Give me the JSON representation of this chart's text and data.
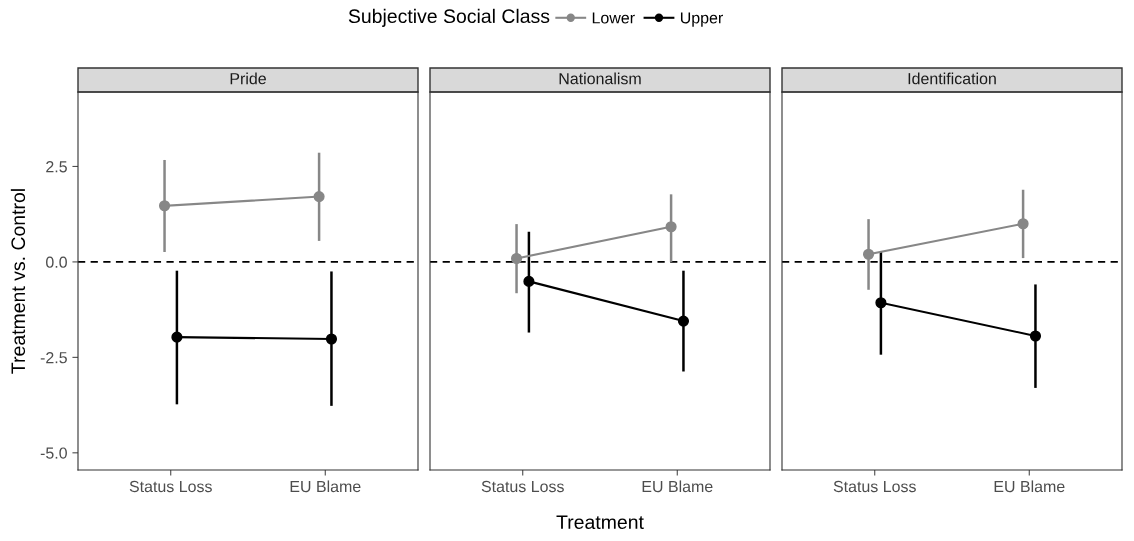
{
  "chart_data": [
    {
      "type": "line",
      "title": "Pride",
      "ylabel": "Treatment vs. Control",
      "legend_title": "Subjective Social Class",
      "legend": "top",
      "categories": [
        "Status Loss",
        "EU Blame"
      ],
      "ylim": [
        -5.45,
        4.45
      ],
      "yticks": [
        {
          "value": -5,
          "label": "-5.0"
        },
        {
          "value": -2.5,
          "label": "-2.5"
        },
        {
          "value": 0,
          "label": "0.0"
        },
        {
          "value": 2.5,
          "label": "2.5"
        }
      ],
      "grid": false,
      "marker": "circle",
      "line_style": "solid",
      "ref_lines": [
        {
          "axis": "y",
          "value": 0,
          "line_style": "dashed",
          "color": "#000000"
        }
      ],
      "series": [
        {
          "name": "Lower",
          "color": "#878787",
          "values": [
            1.47,
            1.71
          ],
          "errors": [
            [
              0.26,
              2.67
            ],
            [
              0.55,
              2.86
            ]
          ]
        },
        {
          "name": "Upper",
          "color": "#000000",
          "values": [
            -1.97,
            -2.02
          ],
          "errors": [
            [
              -3.73,
              -0.23
            ],
            [
              -3.77,
              -0.25
            ]
          ]
        }
      ]
    },
    {
      "type": "line",
      "title": "Nationalism",
      "xlabel": "Treatment",
      "categories": [
        "Status Loss",
        "EU Blame"
      ],
      "ylim": [
        -5.45,
        4.45
      ],
      "tick_labels": "x",
      "grid": false,
      "marker": "circle",
      "line_style": "solid",
      "ref_lines": [
        {
          "axis": "y",
          "value": 0,
          "line_style": "dashed",
          "color": "#000000"
        }
      ],
      "series": [
        {
          "name": "Lower",
          "color": "#878787",
          "values": [
            0.09,
            0.92
          ],
          "errors": [
            [
              -0.82,
              0.99
            ],
            [
              0.0,
              1.77
            ]
          ]
        },
        {
          "name": "Upper",
          "color": "#000000",
          "values": [
            -0.51,
            -1.55
          ],
          "errors": [
            [
              -1.85,
              0.79
            ],
            [
              -2.87,
              -0.23
            ]
          ]
        }
      ]
    },
    {
      "type": "line",
      "title": "Identification",
      "categories": [
        "Status Loss",
        "EU Blame"
      ],
      "ylim": [
        -5.45,
        4.45
      ],
      "tick_labels": "x",
      "grid": false,
      "marker": "circle",
      "line_style": "solid",
      "ref_lines": [
        {
          "axis": "y",
          "value": 0,
          "line_style": "dashed",
          "color": "#000000"
        }
      ],
      "series": [
        {
          "name": "Lower",
          "color": "#878787",
          "values": [
            0.2,
            1.0
          ],
          "errors": [
            [
              -0.73,
              1.12
            ],
            [
              0.1,
              1.89
            ]
          ]
        },
        {
          "name": "Upper",
          "color": "#000000",
          "values": [
            -1.07,
            -1.94
          ],
          "errors": [
            [
              -2.43,
              0.26
            ],
            [
              -3.3,
              -0.59
            ]
          ]
        }
      ]
    }
  ]
}
